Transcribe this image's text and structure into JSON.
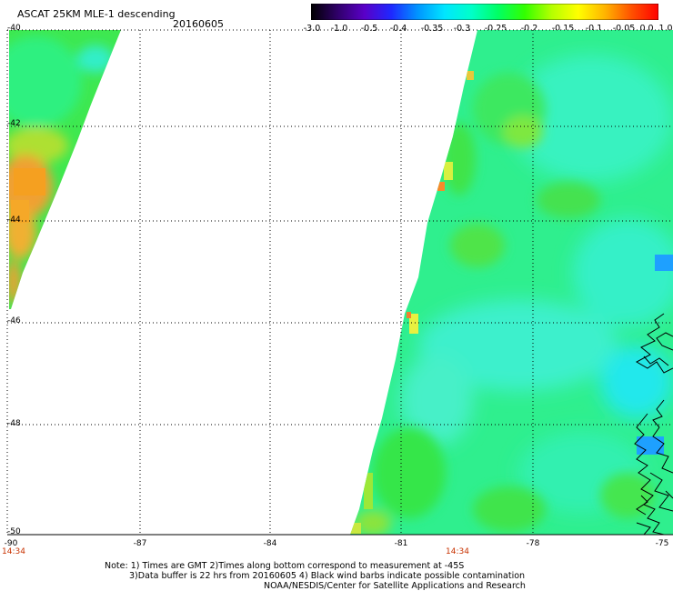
{
  "title": "ASCAT 25KM MLE-1 descending",
  "date": "20160605",
  "colorbar": {
    "labels": [
      "-3.0",
      "-1.0",
      "-0.5",
      "-0.4",
      "-0.35",
      "-0.3",
      "-0.25",
      "-0.2",
      "-0.15",
      "-0.1",
      "-0.05",
      "0.0",
      "1.0"
    ],
    "colors": [
      "#000000",
      "#30006a",
      "#5a00c8",
      "#1e28ff",
      "#0096ff",
      "#00e6ff",
      "#00ffc8",
      "#00ff64",
      "#32ff00",
      "#b4ff00",
      "#ffff00",
      "#ffb400",
      "#ff5000",
      "#ff0000"
    ]
  },
  "map": {
    "lat_labels": [
      "-40",
      "-42",
      "-44",
      "-46",
      "-48",
      "-50"
    ],
    "lon_labels": [
      "-90",
      "-87",
      "-84",
      "-81",
      "-78",
      "-75"
    ],
    "lat_values": [
      -40,
      -42,
      -44,
      -46,
      -48,
      -50
    ],
    "lon_values": [
      -90,
      -87,
      -84,
      -81,
      -78,
      -75
    ],
    "time_labels": [
      "14:34",
      "14:34"
    ]
  },
  "notes": {
    "line1": "Note: 1) Times are GMT 2)Times along bottom correspond to measurement at -45S",
    "line2": "3)Data buffer is 22 hrs from 20160605 4) Black wind barbs indicate possible contamination",
    "line3": "NOAA/NESDIS/Center for Satellite Applications and Research"
  }
}
